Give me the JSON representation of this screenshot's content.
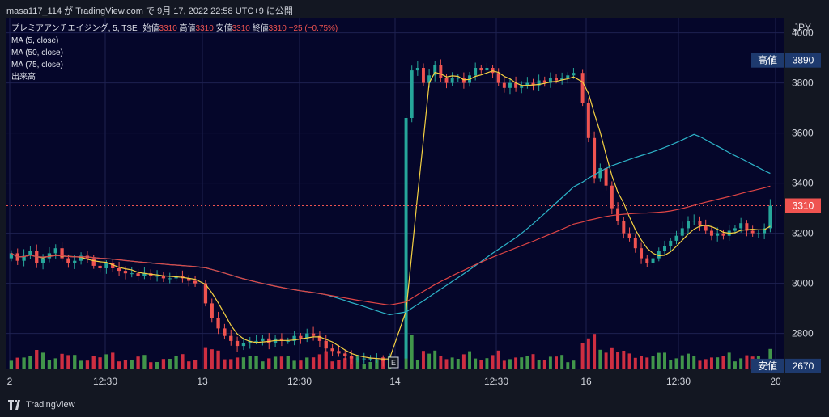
{
  "header": {
    "snapshot_text": "masa117_114 が TradingView.com で 9月 17, 2022 22:58 UTC+9 に公開"
  },
  "legend": {
    "symbol": "プレミアアンチエイジング, 5, TSE",
    "open_label": "始値",
    "open": "3310",
    "high_label": "高値",
    "high": "3310",
    "low_label": "安値",
    "low": "3310",
    "close_label": "終値",
    "close": "3310",
    "change": "−25 (−0.75%)",
    "ma5": "MA (5, close)",
    "ma50": "MA (50, close)",
    "ma75": "MA (75, close)",
    "volume": "出来高"
  },
  "footer": {
    "brand": "TradingView"
  },
  "colors": {
    "up": "#26a69a",
    "down": "#ef5350",
    "ma5": "#f5d142",
    "ma50": "#2db3c8",
    "ma75": "#e04545",
    "plot_bg": "#05062a",
    "vol_up": "#4caf50",
    "vol_down": "#f23645"
  },
  "chart_data": {
    "type": "candlestick",
    "currency": "JPY",
    "y_ticks": [
      "4000",
      "3800",
      "3600",
      "3400",
      "3200",
      "3000",
      "2800"
    ],
    "ylim": [
      2660,
      4060
    ],
    "x_ticks": [
      "2",
      "12:30",
      "13",
      "12:30",
      "14",
      "12:30",
      "16",
      "12:30",
      "20"
    ],
    "high_marker": {
      "label": "高値",
      "value": "3890"
    },
    "low_marker": {
      "label": "安値",
      "value": "2670"
    },
    "last_price": {
      "value": "3310"
    },
    "earnings_marker": "E",
    "series_close": [
      {
        "segment": "Sep 2",
        "close": [
          3120,
          3090,
          3110,
          3130,
          3080,
          3100,
          3120,
          3140,
          3100,
          3080,
          3090,
          3110,
          3100,
          3070,
          3060,
          3080,
          3060,
          3050,
          3040,
          3040,
          3030,
          3040,
          3030,
          3030,
          3020,
          3020,
          3030,
          3020,
          3010,
          3000
        ]
      },
      {
        "segment": "Sep 13",
        "close": [
          2920,
          2860,
          2820,
          2790,
          2770,
          2750,
          2760,
          2770,
          2770,
          2780,
          2760,
          2780,
          2770,
          2770,
          2790,
          2780,
          2800,
          2790,
          2770,
          2740,
          2730,
          2720,
          2710,
          2700,
          2700,
          2700,
          2700,
          2700,
          2690,
          2700
        ]
      },
      {
        "segment": "Sep 14",
        "close": [
          3660,
          3850,
          3860,
          3800,
          3830,
          3870,
          3820,
          3800,
          3820,
          3820,
          3800,
          3830,
          3860,
          3850,
          3860,
          3840,
          3800,
          3780,
          3800,
          3780,
          3790,
          3800,
          3790,
          3810,
          3800,
          3820,
          3810,
          3820,
          3830,
          3840
        ]
      },
      {
        "segment": "Sep 16",
        "close": [
          3720,
          3580,
          3420,
          3460,
          3390,
          3300,
          3250,
          3200,
          3180,
          3140,
          3100,
          3080,
          3100,
          3130,
          3150,
          3170,
          3190,
          3220,
          3250,
          3250,
          3230,
          3210,
          3190,
          3200,
          3190,
          3210,
          3220,
          3240,
          3210,
          3200,
          3200,
          3220,
          3310
        ]
      }
    ],
    "volume_relative": "shown as bars at bottom (no axis)"
  }
}
